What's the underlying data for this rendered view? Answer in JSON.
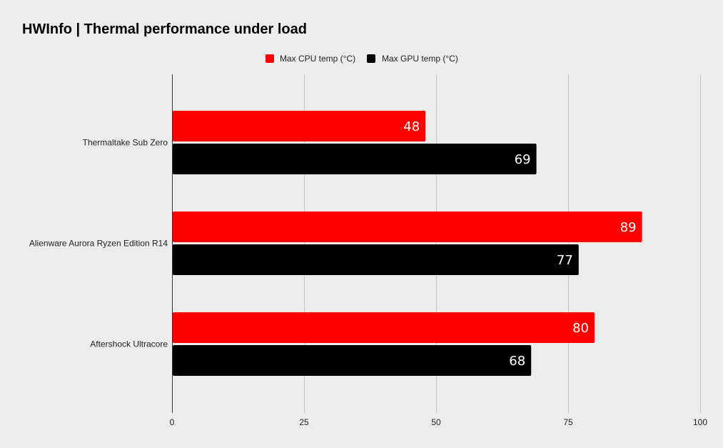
{
  "chart_data": {
    "type": "bar",
    "orientation": "horizontal",
    "title": "HWInfo | Thermal performance under load",
    "categories": [
      "Thermaltake Sub Zero",
      "Alienware Aurora Ryzen Edition R14",
      "Aftershock Ultracore"
    ],
    "series": [
      {
        "name": "Max CPU temp (°C)",
        "color": "#ff0000",
        "values": [
          48,
          89,
          80
        ]
      },
      {
        "name": "Max GPU temp (°C)",
        "color": "#000000",
        "values": [
          69,
          77,
          68
        ]
      }
    ],
    "xlim": [
      0,
      100
    ],
    "xticks": [
      0,
      25,
      50,
      75,
      100
    ],
    "xlabel": "",
    "ylabel": "",
    "grid": true,
    "legend_position": "top-center",
    "data_labels": true
  }
}
